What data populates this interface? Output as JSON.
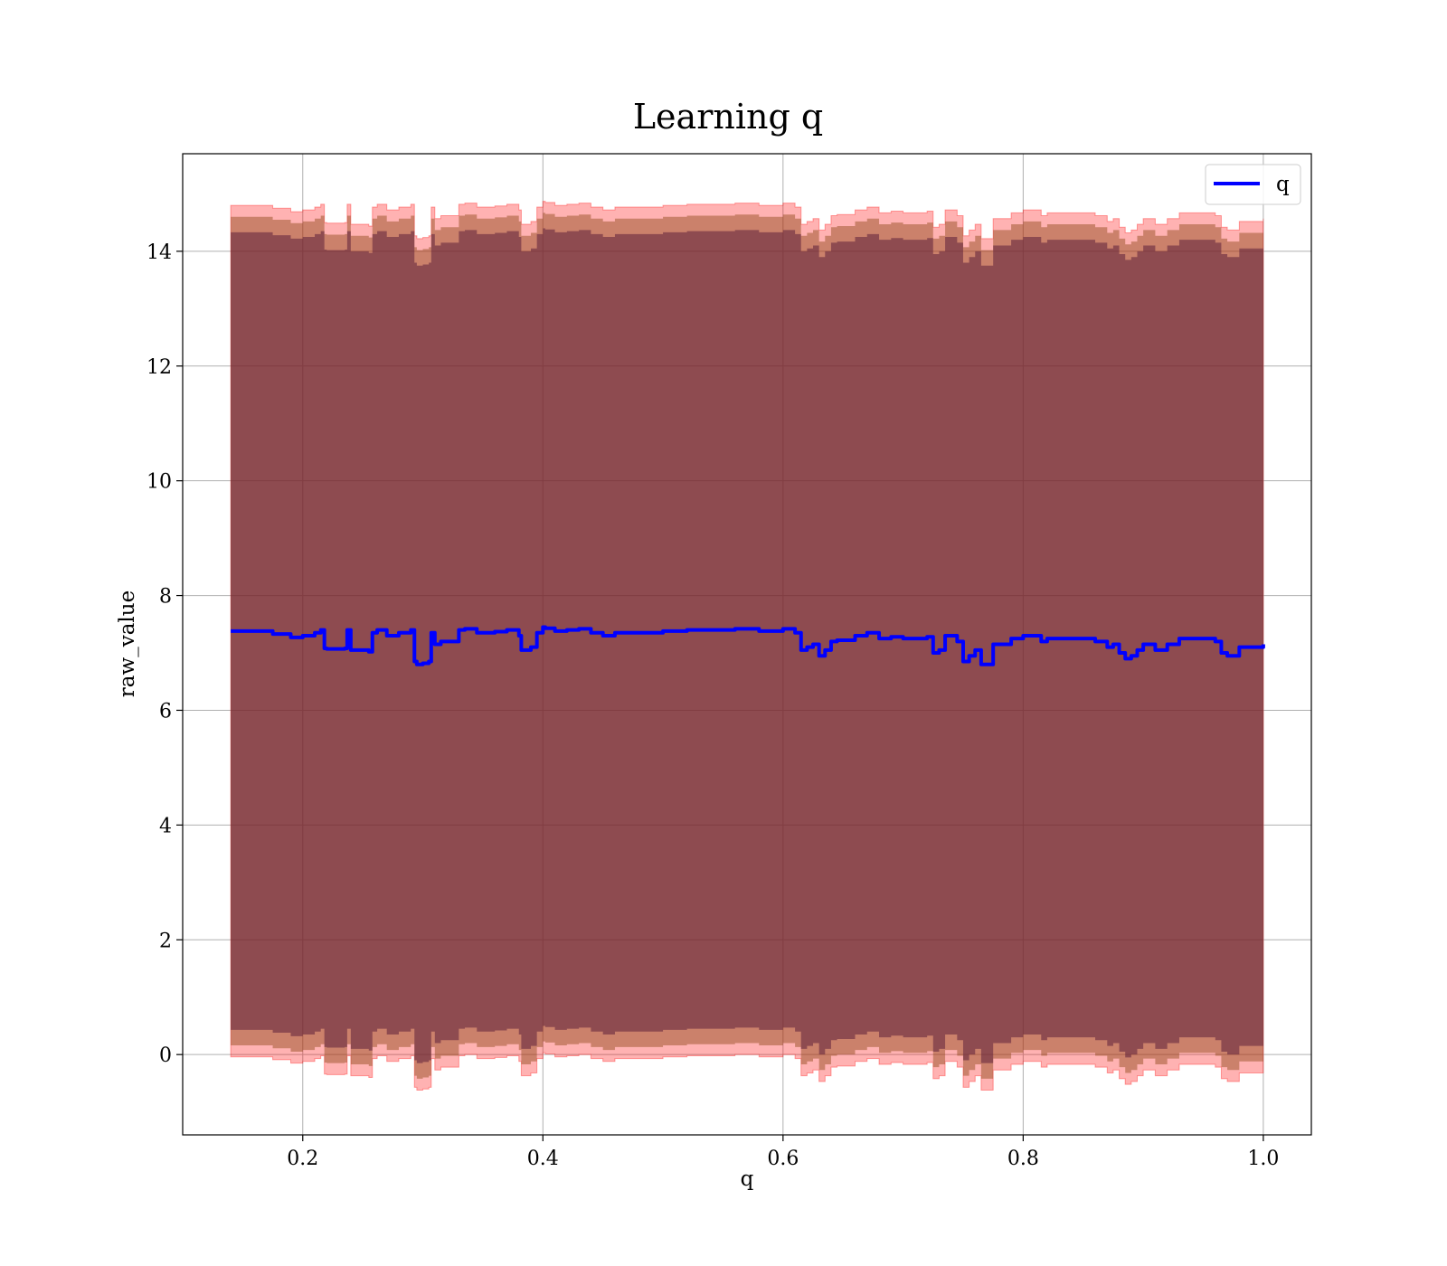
{
  "chart_data": {
    "type": "line",
    "title": "Learning q",
    "xlabel": "q",
    "ylabel": "raw_value",
    "xlim": [
      0.1,
      1.04
    ],
    "ylim": [
      -1.4,
      15.7
    ],
    "xticks": [
      0.2,
      0.4,
      0.6,
      0.8,
      1.0
    ],
    "xtick_labels": [
      "0.2",
      "0.4",
      "0.6",
      "0.8",
      "1.0"
    ],
    "yticks": [
      0,
      2,
      4,
      6,
      8,
      10,
      12,
      14
    ],
    "ytick_labels": [
      "0",
      "2",
      "4",
      "6",
      "8",
      "10",
      "12",
      "14"
    ],
    "grid": true,
    "legend_position": "top-right",
    "colors": {
      "line": "#0000ff",
      "band_outer": "#ff0000",
      "band_inner": "#8b4513",
      "band_core": "#5c1f3a",
      "grid": "#b0b0b0"
    },
    "legend": [
      {
        "label": "q",
        "color": "#0000ff"
      }
    ],
    "series": [
      {
        "name": "q",
        "x": [
          0.14,
          0.16,
          0.175,
          0.18,
          0.19,
          0.2,
          0.21,
          0.215,
          0.218,
          0.22,
          0.235,
          0.237,
          0.24,
          0.255,
          0.258,
          0.262,
          0.27,
          0.28,
          0.29,
          0.293,
          0.295,
          0.3,
          0.305,
          0.307,
          0.31,
          0.315,
          0.32,
          0.33,
          0.335,
          0.345,
          0.36,
          0.37,
          0.38,
          0.382,
          0.39,
          0.395,
          0.4,
          0.402,
          0.41,
          0.42,
          0.43,
          0.44,
          0.45,
          0.46,
          0.47,
          0.5,
          0.52,
          0.54,
          0.56,
          0.58,
          0.6,
          0.61,
          0.615,
          0.62,
          0.625,
          0.63,
          0.635,
          0.64,
          0.645,
          0.66,
          0.67,
          0.68,
          0.69,
          0.7,
          0.71,
          0.72,
          0.725,
          0.73,
          0.735,
          0.74,
          0.745,
          0.75,
          0.755,
          0.76,
          0.765,
          0.77,
          0.775,
          0.78,
          0.79,
          0.8,
          0.81,
          0.815,
          0.82,
          0.83,
          0.84,
          0.86,
          0.87,
          0.875,
          0.88,
          0.885,
          0.89,
          0.895,
          0.9,
          0.91,
          0.92,
          0.93,
          0.96,
          0.965,
          0.97,
          0.98,
          0.99,
          1.0
        ],
        "y": [
          7.38,
          7.38,
          7.33,
          7.33,
          7.27,
          7.3,
          7.35,
          7.4,
          7.08,
          7.07,
          7.08,
          7.4,
          7.05,
          7.02,
          7.35,
          7.4,
          7.3,
          7.35,
          7.4,
          6.85,
          6.8,
          6.82,
          6.85,
          7.35,
          7.15,
          7.2,
          7.2,
          7.4,
          7.42,
          7.35,
          7.37,
          7.4,
          7.3,
          7.05,
          7.1,
          7.35,
          7.45,
          7.43,
          7.38,
          7.4,
          7.42,
          7.35,
          7.3,
          7.35,
          7.35,
          7.38,
          7.4,
          7.4,
          7.42,
          7.38,
          7.42,
          7.35,
          7.05,
          7.1,
          7.15,
          6.95,
          7.05,
          7.2,
          7.22,
          7.3,
          7.35,
          7.25,
          7.28,
          7.25,
          7.25,
          7.28,
          7.0,
          7.05,
          7.3,
          7.3,
          7.2,
          6.85,
          6.95,
          7.05,
          6.8,
          6.8,
          7.15,
          7.15,
          7.25,
          7.3,
          7.3,
          7.2,
          7.25,
          7.25,
          7.25,
          7.2,
          7.1,
          7.15,
          7.0,
          6.9,
          6.95,
          7.05,
          7.15,
          7.05,
          7.15,
          7.25,
          7.2,
          7.0,
          6.95,
          7.1,
          7.1,
          7.15
        ]
      }
    ]
  }
}
